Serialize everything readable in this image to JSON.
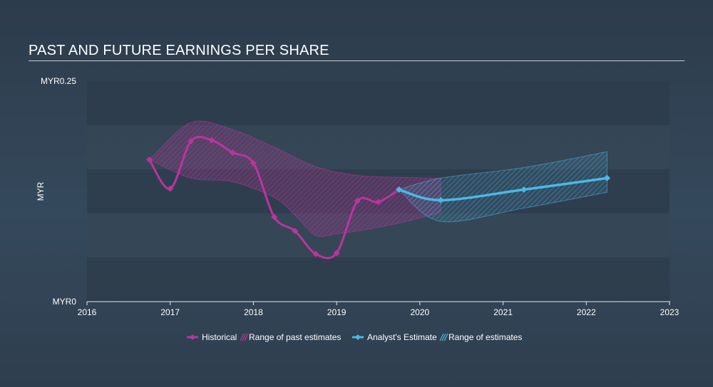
{
  "colors": {
    "historical": "#b9359c",
    "estimate": "#4bb8e6",
    "band_dark": "#2f3d4c",
    "band_light": "#354657",
    "axis": "#e6e9ec"
  },
  "chart_data": {
    "type": "line",
    "title": "PAST AND FUTURE EARNINGS PER SHARE",
    "ylabel": "MYR",
    "y_tick_labels": [
      {
        "value": 0.25,
        "label": "MYR0.25"
      },
      {
        "value": 0,
        "label": "MYR0"
      }
    ],
    "ylim": [
      0,
      0.25
    ],
    "xlim": [
      2016,
      2023
    ],
    "x_ticks": [
      "2016",
      "2017",
      "2018",
      "2019",
      "2020",
      "2021",
      "2022",
      "2023"
    ],
    "series": [
      {
        "name": "Historical",
        "points": [
          [
            2016.75,
            0.161
          ],
          [
            2017.0,
            0.128
          ],
          [
            2017.25,
            0.182
          ],
          [
            2017.5,
            0.183
          ],
          [
            2017.75,
            0.169
          ],
          [
            2018.0,
            0.157
          ],
          [
            2018.25,
            0.096
          ],
          [
            2018.5,
            0.08
          ],
          [
            2018.75,
            0.054
          ],
          [
            2019.0,
            0.055
          ],
          [
            2019.25,
            0.114
          ],
          [
            2019.5,
            0.113
          ],
          [
            2019.75,
            0.127
          ]
        ]
      },
      {
        "name": "Analyst's Estimate",
        "points": [
          [
            2019.75,
            0.127
          ],
          [
            2020.25,
            0.115
          ],
          [
            2021.25,
            0.127
          ],
          [
            2022.25,
            0.14
          ]
        ]
      }
    ],
    "ranges": [
      {
        "name": "Range of past estimates",
        "upper": [
          [
            2016.75,
            0.161
          ],
          [
            2017.25,
            0.203
          ],
          [
            2017.75,
            0.195
          ],
          [
            2018.25,
            0.175
          ],
          [
            2018.75,
            0.153
          ],
          [
            2019.25,
            0.143
          ],
          [
            2019.75,
            0.141
          ],
          [
            2020.25,
            0.14
          ]
        ],
        "lower": [
          [
            2016.75,
            0.161
          ],
          [
            2017.25,
            0.14
          ],
          [
            2017.75,
            0.136
          ],
          [
            2018.25,
            0.118
          ],
          [
            2018.5,
            0.098
          ],
          [
            2018.75,
            0.075
          ],
          [
            2019.0,
            0.077
          ],
          [
            2019.25,
            0.08
          ],
          [
            2019.75,
            0.089
          ],
          [
            2020.25,
            0.101
          ]
        ]
      },
      {
        "name": "Range of estimates",
        "upper": [
          [
            2019.75,
            0.127
          ],
          [
            2020.25,
            0.14
          ],
          [
            2021.25,
            0.152
          ],
          [
            2022.25,
            0.17
          ]
        ],
        "lower": [
          [
            2019.75,
            0.127
          ],
          [
            2020.25,
            0.091
          ],
          [
            2021.25,
            0.106
          ],
          [
            2022.25,
            0.124
          ]
        ]
      }
    ],
    "legend": {
      "placement": "bottom-center",
      "items": [
        "Historical",
        "Range of past estimates",
        "Analyst's Estimate",
        "Range of estimates"
      ]
    }
  }
}
